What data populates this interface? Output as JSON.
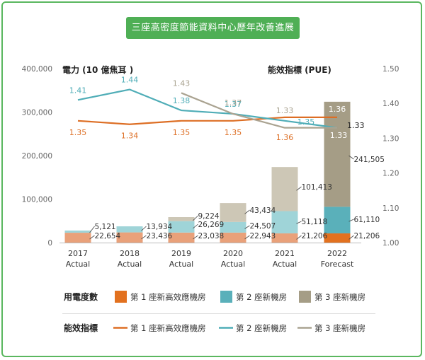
{
  "title": "三座高密度節能資料中心歷年改善進展",
  "chart_data": {
    "type": "bar+line",
    "categories": [
      [
        "2017",
        "Actual"
      ],
      [
        "2018",
        "Actual"
      ],
      [
        "2019",
        "Actual"
      ],
      [
        "2020",
        "Actual"
      ],
      [
        "2021",
        "Actual"
      ],
      [
        "2022",
        "Forecast"
      ]
    ],
    "left_axis": {
      "label": "電力 (10 億焦耳 )",
      "range": [
        0,
        400000
      ],
      "ticks": [
        "0",
        "100,000",
        "200,000",
        "300,000",
        "400,000"
      ]
    },
    "right_axis": {
      "label": "能效指標 (PUE)",
      "range": [
        1.0,
        1.5
      ],
      "ticks": [
        "1.00",
        "1.10",
        "1.20",
        "1.30",
        "1.40",
        "1.50"
      ]
    },
    "bar_series": [
      {
        "name": "第 1 座新高效應機房",
        "color": "#e9a17a",
        "color_2022": "#e2711f",
        "values": [
          22654,
          23436,
          23038,
          22943,
          21206,
          21206
        ],
        "labels": [
          "22,654",
          "23,436",
          "23,038",
          "22,943",
          "21,206",
          "21,206"
        ]
      },
      {
        "name": "第 2 座新機房",
        "color": "#9fd4d8",
        "color_2022": "#5ab0ba",
        "values": [
          5121,
          13934,
          26269,
          24507,
          51118,
          61110
        ],
        "labels": [
          "5,121",
          "13,934",
          "26,269",
          "24,507",
          "51,118",
          "61,110"
        ]
      },
      {
        "name": "第 3 座新機房",
        "color": "#cdc7b6",
        "color_2022": "#a59d86",
        "values": [
          null,
          null,
          9224,
          43434,
          101413,
          241505
        ],
        "labels": [
          null,
          null,
          "9,224",
          "43,434",
          "101,413",
          "241,505"
        ]
      }
    ],
    "line_series": [
      {
        "name": "第 1 座新高效應機房",
        "color": "#dd6e24",
        "values": [
          1.35,
          1.34,
          1.35,
          1.35,
          1.36,
          1.36
        ],
        "labels": [
          "1.35",
          "1.34",
          "1.35",
          "1.35",
          "1.36",
          "1.36"
        ]
      },
      {
        "name": "第 2 座新機房",
        "color": "#4fadb7",
        "values": [
          1.41,
          1.44,
          1.38,
          1.37,
          1.35,
          1.33
        ],
        "labels": [
          "1.41",
          "1.44",
          "1.38",
          "1.37",
          "1.35",
          "1.33"
        ]
      },
      {
        "name": "第 3 座新機房",
        "color": "#aaa391",
        "values": [
          null,
          null,
          1.43,
          1.37,
          1.33,
          1.33
        ],
        "labels": [
          null,
          null,
          "1.43",
          "1.37",
          "1.33",
          "1.33"
        ]
      }
    ]
  },
  "legend": {
    "bar_group_label": "用電度數",
    "line_group_label": "能效指標",
    "items": [
      "第 1 座新高效應機房",
      "第 2 座新機房",
      "第 3 座新機房"
    ]
  }
}
